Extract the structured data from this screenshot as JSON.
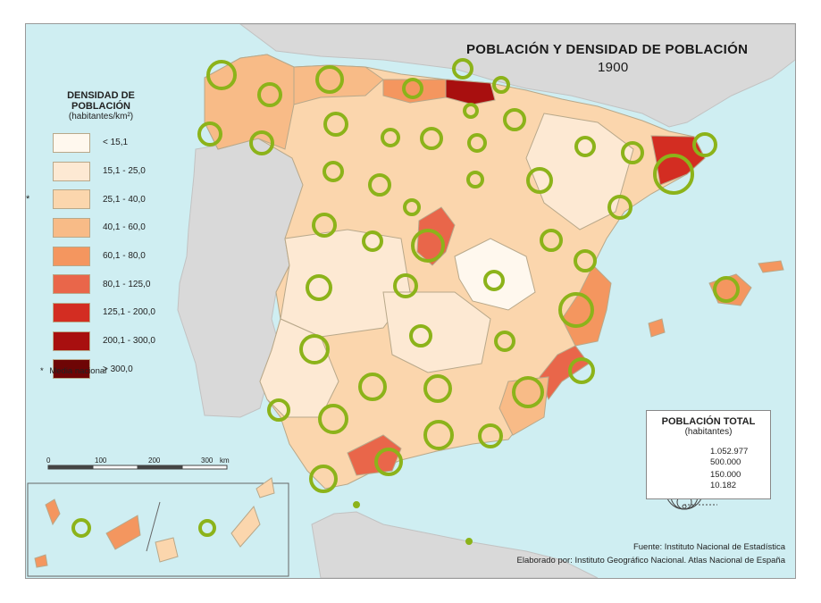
{
  "title": "POBLACIÓN Y DENSIDAD DE POBLACIÓN",
  "year": "1900",
  "density_legend": {
    "title": "DENSIDAD DE POBLACIÓN",
    "subtitle": "(habitantes/km²)",
    "classes": [
      {
        "label": "< 15,1",
        "color": "#fff8ee"
      },
      {
        "label": "15,1 - 25,0",
        "color": "#fde9d3"
      },
      {
        "label": "25,1 - 40,0",
        "color": "#fbd6ad",
        "mean": true
      },
      {
        "label": "40,1 - 60,0",
        "color": "#f8bb87"
      },
      {
        "label": "60,1 - 80,0",
        "color": "#f4965f"
      },
      {
        "label": "80,1 - 125,0",
        "color": "#e9664a"
      },
      {
        "label": "125,1 - 200,0",
        "color": "#d32d22"
      },
      {
        "label": "200,1 - 300,0",
        "color": "#a80f0f"
      },
      {
        "label": "> 300,0",
        "color": "#6e0505"
      }
    ],
    "mean_marker": "*",
    "mean_label": "Media nacional"
  },
  "population_legend": {
    "title": "POBLACIÓN TOTAL",
    "subtitle": "(habitantes)",
    "values": [
      "1.052.977",
      "500.000",
      "150.000",
      "10.182"
    ]
  },
  "scale": {
    "ticks": [
      "0",
      "100",
      "200",
      "300"
    ],
    "unit": "km"
  },
  "source": {
    "line1": "Fuente: Instituto Nacional de Estadística",
    "line2": "Elaborado por: Instituto Geográfico Nacional. Atlas Nacional de España"
  },
  "colors": {
    "sea": "#cfeef2",
    "foreign_land": "#d9d9d9",
    "border": "#b8a88a",
    "circle": "#8cb31a"
  }
}
